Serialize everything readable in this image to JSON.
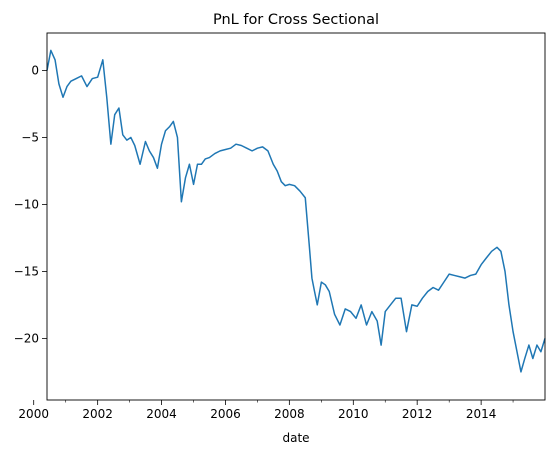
{
  "chart_data": {
    "type": "line",
    "title": "PnL for Cross Sectional",
    "xlabel": "date",
    "ylabel": "",
    "xlim": [
      "2000-06-01",
      "2016-01-01"
    ],
    "ylim": [
      -24.6,
      2.8
    ],
    "x_ticks": [
      "2000",
      "2002",
      "2004",
      "2006",
      "2008",
      "2010",
      "2012",
      "2014"
    ],
    "y_ticks": [
      0,
      -5,
      -10,
      -15,
      -20
    ],
    "grid": false,
    "legend": "none",
    "series": [
      {
        "color": "#1f77b4",
        "x": [
          "2000-06-01",
          "2000-07-15",
          "2000-09-01",
          "2000-10-15",
          "2000-12-01",
          "2001-01-15",
          "2001-03-01",
          "2001-05-01",
          "2001-07-01",
          "2001-09-01",
          "2001-11-01",
          "2002-01-01",
          "2002-03-01",
          "2002-04-15",
          "2002-06-01",
          "2002-07-15",
          "2002-09-01",
          "2002-10-15",
          "2002-12-01",
          "2003-01-15",
          "2003-03-01",
          "2003-05-01",
          "2003-07-01",
          "2003-08-15",
          "2003-10-01",
          "2003-11-15",
          "2004-01-01",
          "2004-02-15",
          "2004-04-01",
          "2004-05-15",
          "2004-07-01",
          "2004-08-15",
          "2004-10-01",
          "2004-11-15",
          "2005-01-01",
          "2005-02-15",
          "2005-04-01",
          "2005-05-15",
          "2005-07-01",
          "2005-09-01",
          "2005-11-01",
          "2006-01-01",
          "2006-03-01",
          "2006-05-01",
          "2006-07-01",
          "2006-09-01",
          "2006-11-01",
          "2007-01-01",
          "2007-03-01",
          "2007-05-01",
          "2007-07-01",
          "2007-08-15",
          "2007-10-01",
          "2007-11-15",
          "2008-01-01",
          "2008-03-01",
          "2008-05-01",
          "2008-07-01",
          "2008-08-15",
          "2008-09-15",
          "2008-10-15",
          "2008-11-15",
          "2009-01-01",
          "2009-02-15",
          "2009-04-01",
          "2009-06-01",
          "2009-08-01",
          "2009-10-01",
          "2009-12-01",
          "2010-02-01",
          "2010-04-01",
          "2010-06-01",
          "2010-08-01",
          "2010-10-01",
          "2010-11-15",
          "2011-01-01",
          "2011-03-01",
          "2011-05-01",
          "2011-07-01",
          "2011-09-01",
          "2011-11-01",
          "2012-01-01",
          "2012-03-01",
          "2012-05-01",
          "2012-07-01",
          "2012-09-01",
          "2012-11-01",
          "2013-01-01",
          "2013-03-01",
          "2013-05-01",
          "2013-07-01",
          "2013-09-01",
          "2013-11-01",
          "2014-01-01",
          "2014-03-01",
          "2014-05-01",
          "2014-07-01",
          "2014-08-15",
          "2014-10-01",
          "2014-11-15",
          "2015-01-01",
          "2015-02-15",
          "2015-04-01",
          "2015-05-15",
          "2015-07-01",
          "2015-08-15",
          "2015-10-01",
          "2015-11-15",
          "2016-01-01"
        ],
        "y": [
          0.0,
          1.5,
          0.8,
          -1.0,
          -2.0,
          -1.2,
          -0.8,
          -0.6,
          -0.4,
          -1.2,
          -0.6,
          -0.5,
          0.8,
          -2.0,
          -5.5,
          -3.3,
          -2.8,
          -4.8,
          -5.2,
          -5.0,
          -5.6,
          -7.0,
          -5.3,
          -6.0,
          -6.5,
          -7.3,
          -5.5,
          -4.5,
          -4.2,
          -3.8,
          -5.0,
          -9.8,
          -8.0,
          -7.0,
          -8.5,
          -7.0,
          -7.0,
          -6.6,
          -6.5,
          -6.2,
          -6.0,
          -5.9,
          -5.8,
          -5.5,
          -5.6,
          -5.8,
          -6.0,
          -5.8,
          -5.7,
          -6.0,
          -7.0,
          -7.5,
          -8.3,
          -8.6,
          -8.5,
          -8.6,
          -9.0,
          -9.5,
          -13.0,
          -15.5,
          -16.5,
          -17.5,
          -15.8,
          -16.0,
          -16.5,
          -18.2,
          -19.0,
          -17.8,
          -18.0,
          -18.5,
          -17.5,
          -19.0,
          -18.0,
          -18.7,
          -20.5,
          -18.0,
          -17.5,
          -17.0,
          -17.0,
          -19.5,
          -17.5,
          -17.6,
          -17.0,
          -16.5,
          -16.2,
          -16.4,
          -15.8,
          -15.2,
          -15.3,
          -15.4,
          -15.5,
          -15.3,
          -15.2,
          -14.5,
          -14.0,
          -13.5,
          -13.2,
          -13.5,
          -15.0,
          -17.5,
          -19.5,
          -21.0,
          -22.5,
          -21.5,
          -20.5,
          -21.5,
          -20.5,
          -21.0,
          -20.0
        ]
      }
    ]
  }
}
